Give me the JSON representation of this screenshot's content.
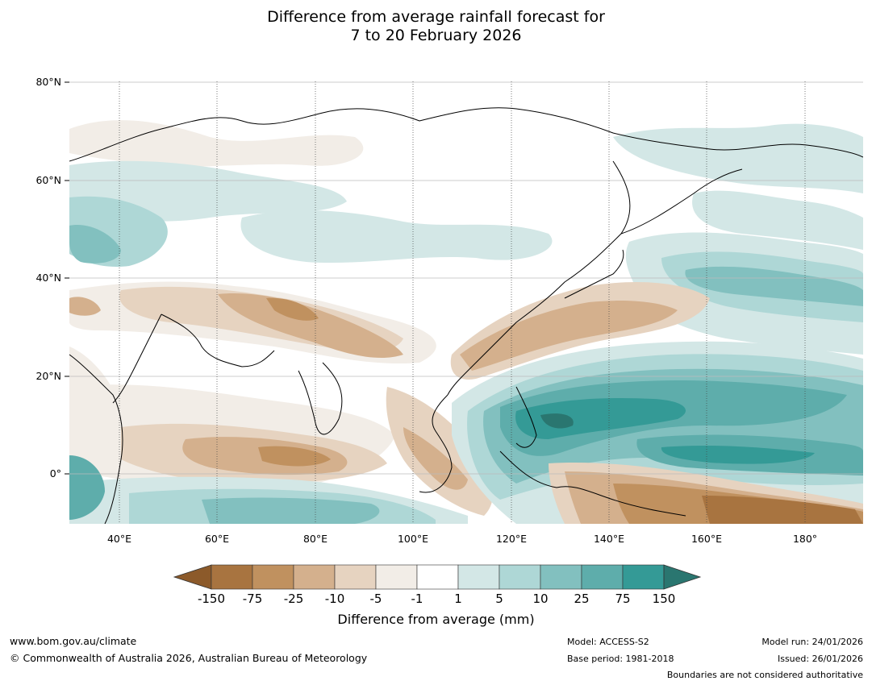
{
  "title": {
    "line1": "Difference from average rainfall forecast for",
    "line2": "7 to 20 February 2026"
  },
  "map": {
    "lat_labels": [
      "80°N",
      "60°N",
      "40°N",
      "20°N",
      "0°"
    ],
    "lon_labels": [
      "40°E",
      "60°E",
      "80°E",
      "100°E",
      "120°E",
      "140°E",
      "160°E",
      "180°"
    ],
    "lon_range": [
      30,
      192
    ],
    "lat_range": [
      -10,
      81
    ]
  },
  "colorbar": {
    "title": "Difference from average (mm)",
    "tick_labels": [
      "-150",
      "-75",
      "-25",
      "-10",
      "-5",
      "-1",
      "1",
      "5",
      "10",
      "25",
      "75",
      "150"
    ],
    "colors": [
      "#a87440",
      "#c0915f",
      "#d4b08d",
      "#e6d3c0",
      "#f2ede7",
      "#ffffff",
      "#d3e7e6",
      "#aed7d6",
      "#82c0bf",
      "#5eadab",
      "#349a96",
      "#2a7670"
    ],
    "under_color": "#8c5a2a"
  },
  "footer": {
    "website": "www.bom.gov.au/climate",
    "copyright": "© Commonwealth of Australia 2026, Australian Bureau of Meteorology",
    "model": "Model: ACCESS-S2",
    "base_period": "Base period: 1981-2018",
    "model_run": "Model run: 24/01/2026",
    "issued": "Issued: 26/01/2026",
    "boundaries_note": "Boundaries are not considered authoritative"
  }
}
